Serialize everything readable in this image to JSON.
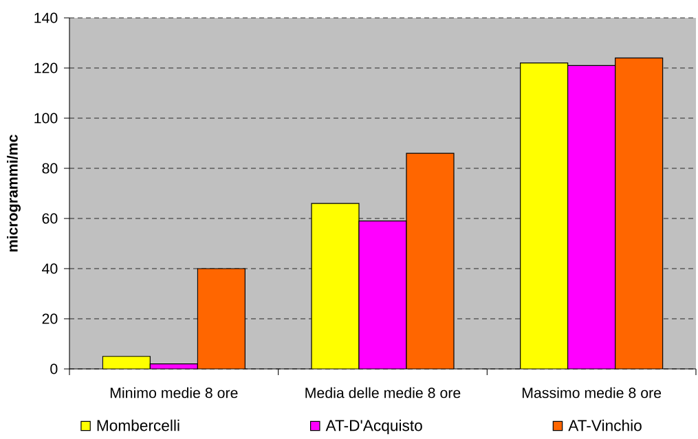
{
  "chart_data": {
    "type": "bar",
    "ylabel": "microgrammi/mc",
    "categories": [
      "Minimo medie 8 ore",
      "Media delle medie 8 ore",
      "Massimo medie 8 ore"
    ],
    "series": [
      {
        "name": "Mombercelli",
        "color": "#ffff00",
        "values": [
          5,
          66,
          122
        ]
      },
      {
        "name": "AT-D'Acquisto",
        "color": "#ff00ff",
        "values": [
          2,
          59,
          121
        ]
      },
      {
        "name": "AT-Vinchio",
        "color": "#ff6600",
        "values": [
          40,
          86,
          124
        ]
      }
    ],
    "ylim": [
      0,
      140
    ],
    "yticks": [
      0,
      20,
      40,
      60,
      80,
      100,
      120,
      140
    ],
    "grid": "y",
    "legend": "bottom"
  }
}
